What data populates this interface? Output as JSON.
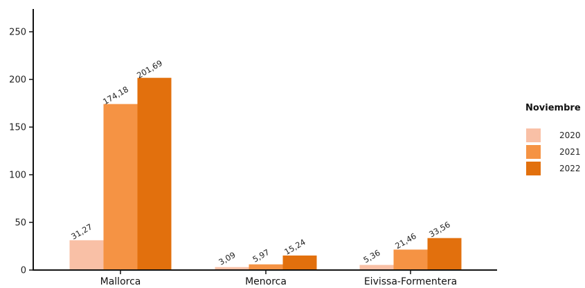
{
  "chart_data": {
    "type": "bar",
    "categories": [
      "Mallorca",
      "Menorca",
      "Eivissa-Formentera"
    ],
    "series": [
      {
        "name": "2020",
        "values": [
          31.27,
          3.09,
          5.36
        ],
        "labels": [
          "31,27",
          "3,09",
          "5,36"
        ],
        "color": "#f9c0a6"
      },
      {
        "name": "2021",
        "values": [
          174.18,
          5.97,
          21.46
        ],
        "labels": [
          "174,18",
          "5,97",
          "21,46"
        ],
        "color": "#f59344"
      },
      {
        "name": "2022",
        "values": [
          201.69,
          15.24,
          33.56
        ],
        "labels": [
          "201,69",
          "15,24",
          "33,56"
        ],
        "color": "#e2700d"
      }
    ],
    "legend_title": "Noviembre",
    "legend_position": "right",
    "ylim": [
      0,
      275
    ],
    "yticks": [
      0,
      50,
      100,
      150,
      200,
      250
    ],
    "ytick_labels": [
      "0",
      "50",
      "100",
      "150",
      "200",
      "250"
    ],
    "grid": false,
    "title": "",
    "xlabel": "",
    "ylabel": ""
  }
}
